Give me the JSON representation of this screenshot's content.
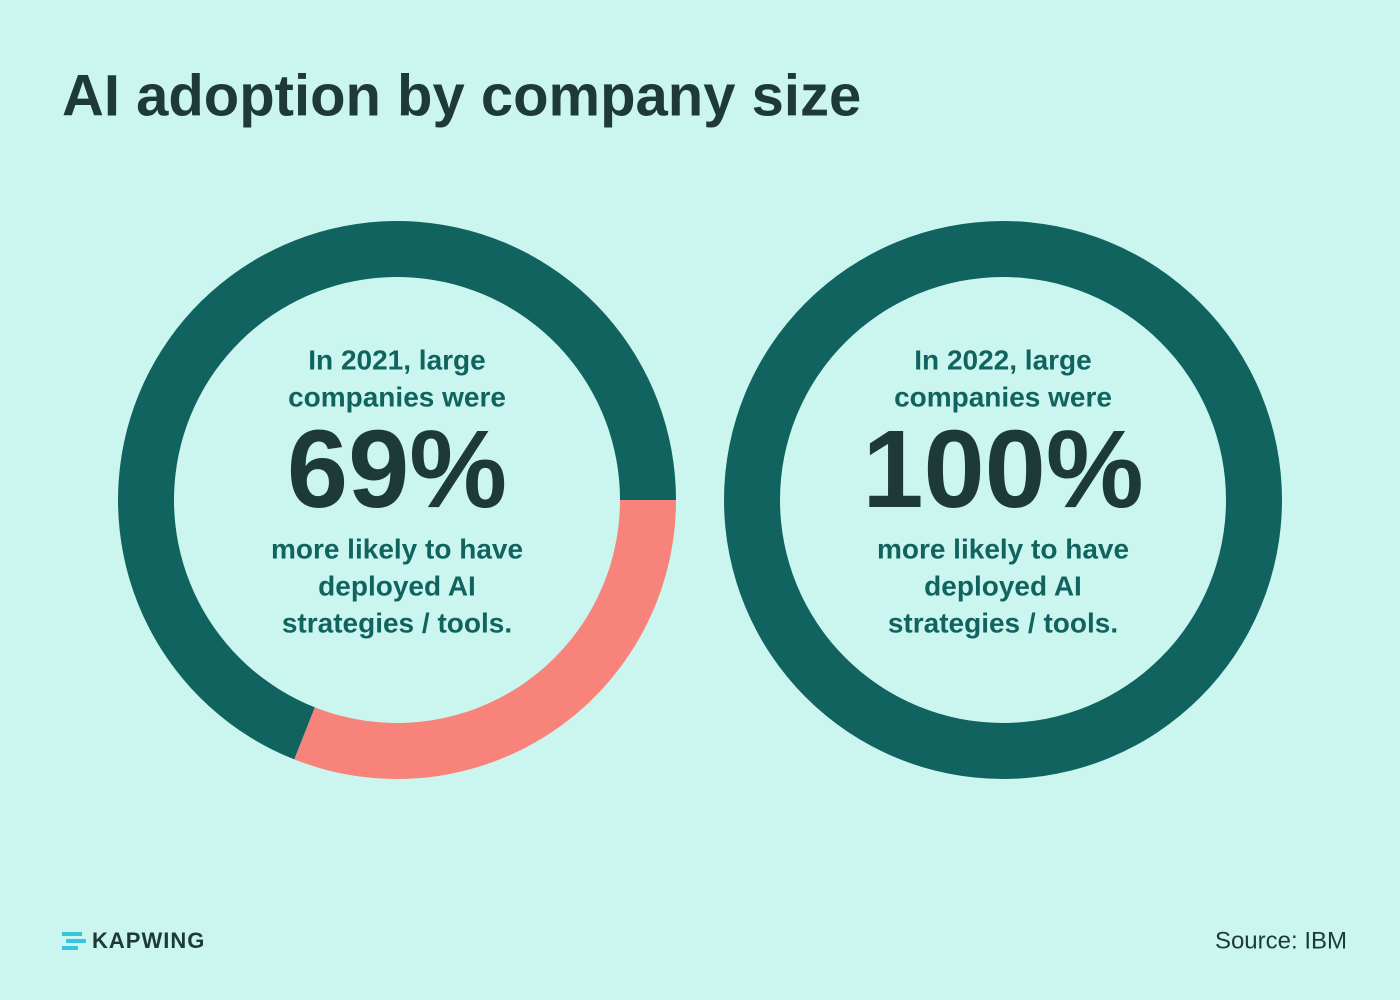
{
  "title": "AI adoption by company size",
  "chart_data": [
    {
      "type": "donut",
      "lead": [
        "In 2021, large",
        "companies were"
      ],
      "tail": [
        "more likely to have",
        "deployed AI",
        "strategies / tools."
      ],
      "values": [
        69,
        31
      ],
      "value_labels": [
        "69%",
        null
      ],
      "colors": [
        "#11635f",
        "#f8837a"
      ]
    },
    {
      "type": "donut",
      "lead": [
        "In 2022, large",
        "companies were"
      ],
      "tail": [
        "more likely to have",
        "deployed AI",
        "strategies / tools."
      ],
      "values": [
        100
      ],
      "value_labels": [
        "100%"
      ],
      "colors": [
        "#11635f"
      ]
    }
  ],
  "brand": "KAPWING",
  "source": "Source: IBM"
}
